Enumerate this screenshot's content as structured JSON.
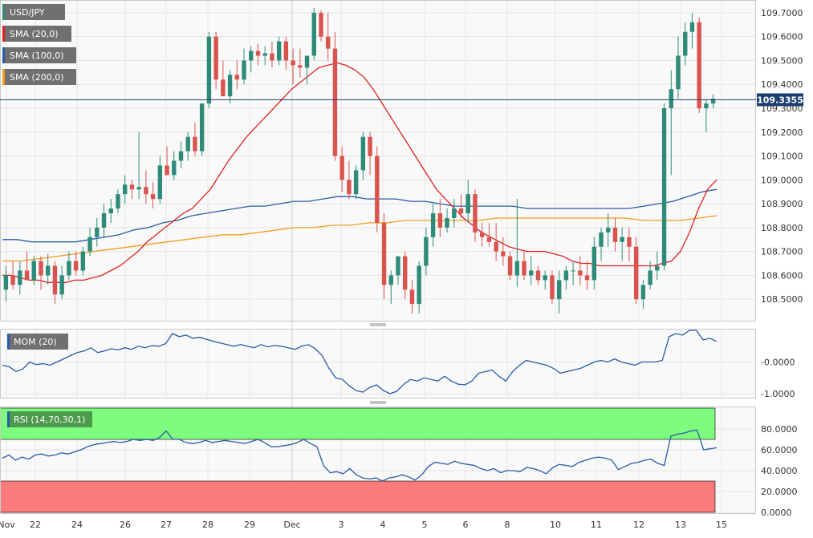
{
  "colors": {
    "bull": "#2e8b7a",
    "bear": "#d9534f",
    "sma20": "#e02020",
    "sma100": "#2a5aa8",
    "sma200": "#f39c1f",
    "mom": "#2a5aa8",
    "rsi": "#2a5aa8",
    "rsi_overbought": "#7dfc7d",
    "rsi_oversold": "#fb7b7b",
    "price_line": "#1c3f6e"
  },
  "legend": {
    "symbol": "USD/JPY",
    "sma20": "SMA (20,0)",
    "sma100": "SMA (100,0)",
    "sma200": "SMA (200,0)",
    "mom": "MOM (20)",
    "rsi": "RSI (14,70,30,1)"
  },
  "current_price_label": "109.3355",
  "x_labels": [
    "Nov",
    "22",
    "24",
    "26",
    "27",
    "28",
    "29",
    "Dec",
    "3",
    "4",
    "5",
    "6",
    "8",
    "10",
    "11",
    "12",
    "13",
    "15"
  ],
  "chart_data": [
    {
      "type": "candlestick",
      "title": "USD/JPY",
      "ylim": [
        108.42,
        109.74
      ],
      "y_ticks": [
        "108.5000",
        "108.6000",
        "108.7000",
        "108.8000",
        "108.9000",
        "109.0000",
        "109.1000",
        "109.2000",
        "109.3000",
        "109.4000",
        "109.5000",
        "109.6000",
        "109.7000"
      ],
      "current_price": 109.3355,
      "ohlc": [
        [
          108.54,
          108.64,
          108.49,
          108.6
        ],
        [
          108.6,
          108.66,
          108.54,
          108.56
        ],
        [
          108.56,
          108.66,
          108.52,
          108.62
        ],
        [
          108.62,
          108.7,
          108.58,
          108.58
        ],
        [
          108.58,
          108.68,
          108.56,
          108.66
        ],
        [
          108.66,
          108.68,
          108.54,
          108.6
        ],
        [
          108.6,
          108.69,
          108.56,
          108.64
        ],
        [
          108.64,
          108.66,
          108.48,
          108.52
        ],
        [
          108.52,
          108.64,
          108.5,
          108.6
        ],
        [
          108.6,
          108.7,
          108.58,
          108.66
        ],
        [
          108.66,
          108.7,
          108.6,
          108.62
        ],
        [
          108.62,
          108.72,
          108.6,
          108.7
        ],
        [
          108.7,
          108.8,
          108.68,
          108.76
        ],
        [
          108.76,
          108.84,
          108.72,
          108.8
        ],
        [
          108.8,
          108.9,
          108.76,
          108.86
        ],
        [
          108.86,
          108.92,
          108.82,
          108.88
        ],
        [
          108.88,
          108.96,
          108.86,
          108.94
        ],
        [
          108.94,
          109.02,
          108.9,
          108.98
        ],
        [
          108.98,
          109.0,
          108.92,
          108.96
        ],
        [
          108.96,
          109.2,
          108.92,
          108.97
        ],
        [
          108.97,
          109.04,
          108.9,
          108.94
        ],
        [
          108.94,
          108.99,
          108.88,
          108.92
        ],
        [
          108.92,
          109.1,
          108.9,
          109.06
        ],
        [
          109.06,
          109.14,
          109.02,
          109.02
        ],
        [
          109.02,
          109.12,
          109.0,
          109.08
        ],
        [
          109.08,
          109.16,
          109.05,
          109.12
        ],
        [
          109.12,
          109.2,
          109.08,
          109.18
        ],
        [
          109.18,
          109.24,
          109.1,
          109.12
        ],
        [
          109.12,
          109.32,
          109.1,
          109.32
        ],
        [
          109.32,
          109.62,
          109.3,
          109.6
        ],
        [
          109.6,
          109.62,
          109.38,
          109.42
        ],
        [
          109.42,
          109.5,
          109.35,
          109.35
        ],
        [
          109.35,
          109.46,
          109.32,
          109.44
        ],
        [
          109.44,
          109.5,
          109.38,
          109.42
        ],
        [
          109.42,
          109.55,
          109.4,
          109.5
        ],
        [
          109.5,
          109.56,
          109.45,
          109.54
        ],
        [
          109.54,
          109.57,
          109.48,
          109.52
        ],
        [
          109.52,
          109.56,
          109.48,
          109.53
        ],
        [
          109.53,
          109.58,
          109.47,
          109.5
        ],
        [
          109.5,
          109.6,
          109.48,
          109.58
        ],
        [
          109.58,
          109.6,
          109.46,
          109.5
        ],
        [
          109.5,
          109.55,
          109.4,
          109.48
        ],
        [
          109.48,
          109.55,
          109.43,
          109.47
        ],
        [
          109.47,
          109.52,
          109.4,
          109.52
        ],
        [
          109.52,
          109.72,
          109.5,
          109.7
        ],
        [
          109.7,
          109.71,
          109.58,
          109.6
        ],
        [
          109.6,
          109.7,
          109.5,
          109.55
        ],
        [
          109.55,
          109.62,
          109.08,
          109.1
        ],
        [
          109.1,
          109.14,
          108.95,
          109.0
        ],
        [
          109.0,
          109.08,
          108.92,
          108.94
        ],
        [
          108.94,
          109.06,
          108.92,
          109.04
        ],
        [
          109.04,
          109.2,
          109.0,
          109.18
        ],
        [
          109.18,
          109.2,
          109.02,
          109.1
        ],
        [
          109.1,
          109.14,
          108.78,
          108.82
        ],
        [
          108.82,
          108.86,
          108.5,
          108.56
        ],
        [
          108.56,
          108.62,
          108.48,
          108.6
        ],
        [
          108.6,
          108.68,
          108.56,
          108.68
        ],
        [
          108.68,
          108.7,
          108.5,
          108.54
        ],
        [
          108.54,
          108.58,
          108.44,
          108.48
        ],
        [
          108.48,
          108.66,
          108.44,
          108.64
        ],
        [
          108.64,
          108.8,
          108.6,
          108.76
        ],
        [
          108.76,
          108.9,
          108.72,
          108.86
        ],
        [
          108.86,
          108.92,
          108.76,
          108.8
        ],
        [
          108.8,
          108.88,
          108.78,
          108.84
        ],
        [
          108.84,
          108.92,
          108.8,
          108.88
        ],
        [
          108.88,
          108.94,
          108.84,
          108.86
        ],
        [
          108.86,
          109.0,
          108.82,
          108.94
        ],
        [
          108.94,
          108.96,
          108.74,
          108.78
        ],
        [
          108.78,
          108.82,
          108.72,
          108.76
        ],
        [
          108.76,
          108.82,
          108.72,
          108.74
        ],
        [
          108.74,
          108.82,
          108.66,
          108.7
        ],
        [
          108.7,
          108.76,
          108.64,
          108.68
        ],
        [
          108.68,
          108.7,
          108.58,
          108.6
        ],
        [
          108.6,
          108.92,
          108.55,
          108.66
        ],
        [
          108.66,
          108.7,
          108.58,
          108.6
        ],
        [
          108.6,
          108.68,
          108.56,
          108.62
        ],
        [
          108.62,
          108.64,
          108.56,
          108.58
        ],
        [
          108.58,
          108.62,
          108.54,
          108.6
        ],
        [
          108.6,
          108.62,
          108.48,
          108.5
        ],
        [
          108.5,
          108.62,
          108.44,
          108.58
        ],
        [
          108.58,
          108.64,
          108.54,
          108.62
        ],
        [
          108.62,
          108.66,
          108.56,
          108.62
        ],
        [
          108.62,
          108.68,
          108.56,
          108.6
        ],
        [
          108.6,
          108.66,
          108.54,
          108.58
        ],
        [
          108.58,
          108.76,
          108.54,
          108.72
        ],
        [
          108.72,
          108.8,
          108.66,
          108.78
        ],
        [
          108.78,
          108.86,
          108.72,
          108.8
        ],
        [
          108.8,
          108.84,
          108.7,
          108.74
        ],
        [
          108.74,
          108.8,
          108.66,
          108.76
        ],
        [
          108.76,
          108.8,
          108.66,
          108.72
        ],
        [
          108.72,
          108.76,
          108.48,
          108.5
        ],
        [
          108.5,
          108.58,
          108.46,
          108.56
        ],
        [
          108.56,
          108.66,
          108.54,
          108.62
        ],
        [
          108.62,
          108.7,
          108.58,
          108.64
        ],
        [
          108.64,
          109.32,
          108.62,
          109.3
        ],
        [
          109.3,
          109.46,
          109.02,
          109.38
        ],
        [
          109.38,
          109.6,
          109.34,
          109.52
        ],
        [
          109.52,
          109.66,
          109.48,
          109.62
        ],
        [
          109.62,
          109.7,
          109.55,
          109.66
        ],
        [
          109.66,
          109.68,
          109.28,
          109.3
        ],
        [
          109.3,
          109.34,
          109.2,
          109.32
        ],
        [
          109.32,
          109.36,
          109.3,
          109.34
        ]
      ],
      "sma20": [
        108.6,
        108.6,
        108.59,
        108.58,
        108.58,
        108.57,
        108.57,
        108.57,
        108.58,
        108.58,
        108.59,
        108.6,
        108.62,
        108.64,
        108.67,
        108.7,
        108.74,
        108.77,
        108.8,
        108.83,
        108.86,
        108.88,
        108.92,
        108.96,
        109.02,
        109.08,
        109.13,
        109.18,
        109.22,
        109.26,
        109.3,
        109.34,
        109.38,
        109.41,
        109.44,
        109.47,
        109.48,
        109.49,
        109.48,
        109.46,
        109.43,
        109.38,
        109.32,
        109.26,
        109.2,
        109.14,
        109.08,
        109.02,
        108.96,
        108.92,
        108.88,
        108.84,
        108.81,
        108.78,
        108.76,
        108.74,
        108.72,
        108.71,
        108.7,
        108.7,
        108.7,
        108.69,
        108.68,
        108.66,
        108.65,
        108.65,
        108.64,
        108.64,
        108.64,
        108.64,
        108.64,
        108.64,
        108.64,
        108.65,
        108.66,
        108.7,
        108.78,
        108.88,
        108.96,
        109.0
      ],
      "sma100": [
        108.75,
        108.75,
        108.74,
        108.74,
        108.74,
        108.74,
        108.75,
        108.76,
        108.77,
        108.79,
        108.8,
        108.82,
        108.83,
        108.85,
        108.86,
        108.87,
        108.88,
        108.89,
        108.89,
        108.9,
        108.91,
        108.91,
        108.92,
        108.93,
        108.93,
        108.92,
        108.92,
        108.92,
        108.91,
        108.91,
        108.9,
        108.89,
        108.89,
        108.89,
        108.89,
        108.89,
        108.88,
        108.88,
        108.88,
        108.88,
        108.88,
        108.88,
        108.88,
        108.88,
        108.89,
        108.9,
        108.91,
        108.93,
        108.95,
        108.96
      ],
      "sma200": [
        108.66,
        108.66,
        108.67,
        108.68,
        108.69,
        108.7,
        108.71,
        108.72,
        108.73,
        108.74,
        108.75,
        108.76,
        108.77,
        108.77,
        108.78,
        108.79,
        108.8,
        108.8,
        108.81,
        108.81,
        108.82,
        108.82,
        108.83,
        108.83,
        108.83,
        108.83,
        108.83,
        108.84,
        108.84,
        108.84,
        108.84,
        108.84,
        108.84,
        108.84,
        108.84,
        108.83,
        108.83,
        108.83,
        108.84,
        108.85
      ]
    },
    {
      "type": "line",
      "title": "MOM (20)",
      "ylim": [
        -1.1,
        1.0
      ],
      "y_ticks": [
        "-0.0000",
        "-1.0000"
      ],
      "values": [
        -0.1,
        -0.15,
        -0.3,
        -0.22,
        0.0,
        -0.08,
        -0.05,
        -0.1,
        0.0,
        0.1,
        0.2,
        0.3,
        0.35,
        0.45,
        0.3,
        0.35,
        0.42,
        0.38,
        0.45,
        0.4,
        0.5,
        0.45,
        0.52,
        0.5,
        0.58,
        0.9,
        0.8,
        0.85,
        0.75,
        0.78,
        0.72,
        0.65,
        0.6,
        0.55,
        0.5,
        0.55,
        0.5,
        0.45,
        0.55,
        0.48,
        0.52,
        0.5,
        0.45,
        0.4,
        0.5,
        0.55,
        0.42,
        0.2,
        -0.2,
        -0.5,
        -0.55,
        -0.75,
        -0.9,
        -0.95,
        -0.8,
        -0.72,
        -0.9,
        -1.0,
        -0.92,
        -0.7,
        -0.55,
        -0.6,
        -0.5,
        -0.55,
        -0.6,
        -0.45,
        -0.6,
        -0.7,
        -0.72,
        -0.6,
        -0.35,
        -0.3,
        -0.25,
        -0.45,
        -0.6,
        -0.3,
        -0.1,
        0.05,
        0.0,
        -0.05,
        -0.1,
        -0.2,
        -0.35,
        -0.3,
        -0.25,
        -0.2,
        -0.1,
        0.0,
        0.05,
        0.0,
        0.1,
        0.0,
        -0.05,
        -0.1,
        0.0,
        0.0,
        0.0,
        0.05,
        0.8,
        0.9,
        0.85,
        1.0,
        1.0,
        0.7,
        0.75,
        0.65
      ]
    },
    {
      "type": "line",
      "title": "RSI (14,70,30,1)",
      "ylim": [
        0,
        100
      ],
      "y_ticks": [
        "80.0000",
        "60.0000",
        "40.0000",
        "20.0000",
        "0.0000"
      ],
      "overbought": 70,
      "oversold": 30,
      "values": [
        52,
        55,
        50,
        53,
        51,
        55,
        56,
        54,
        55,
        57,
        56,
        58,
        60,
        63,
        65,
        66,
        67,
        68,
        67,
        68,
        70,
        69,
        70,
        69,
        72,
        78,
        70,
        70,
        67,
        66,
        67,
        69,
        67,
        68,
        69,
        68,
        67,
        66,
        68,
        70,
        67,
        63,
        63,
        64,
        65,
        67,
        70,
        66,
        63,
        45,
        38,
        39,
        37,
        42,
        36,
        33,
        32,
        33,
        30,
        33,
        34,
        36,
        34,
        31,
        36,
        44,
        48,
        47,
        46,
        49,
        47,
        46,
        45,
        42,
        40,
        42,
        38,
        40,
        40,
        39,
        43,
        42,
        40,
        37,
        43,
        46,
        45,
        44,
        48,
        50,
        52,
        53,
        52,
        50,
        41,
        44,
        47,
        48,
        50,
        51,
        47,
        45,
        73,
        75,
        76,
        78,
        79,
        60,
        61,
        62
      ]
    }
  ]
}
